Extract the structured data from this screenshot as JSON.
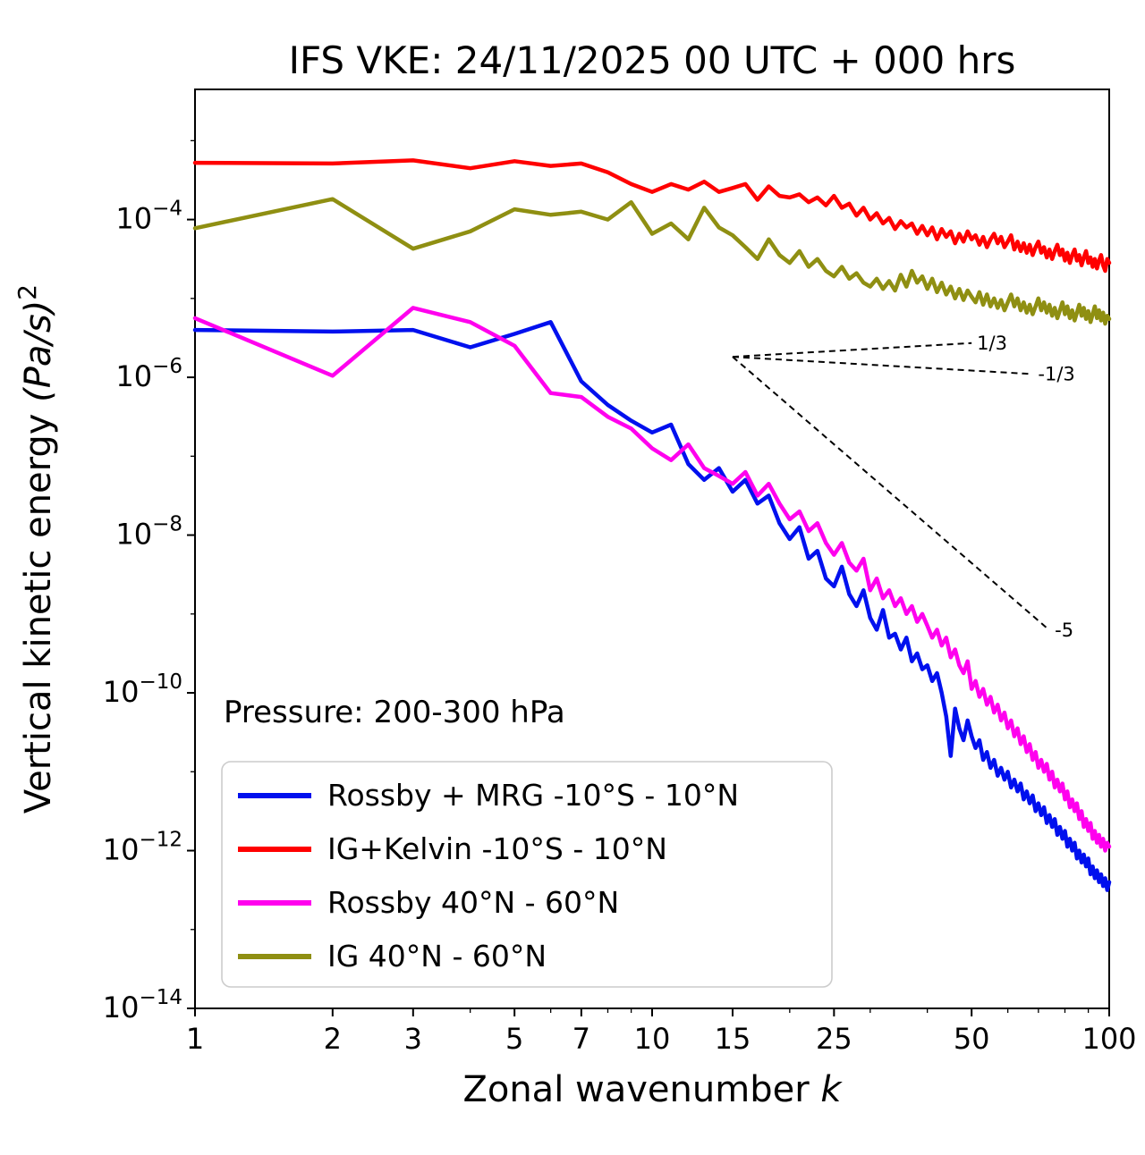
{
  "figure": {
    "title": "IFS VKE: 24/11/2025 00 UTC + 000 hrs",
    "annotation": "Pressure: 200-300 hPa"
  },
  "chart_data": {
    "type": "line",
    "title": "IFS VKE: 24/11/2025 00 UTC + 000 hrs",
    "xlabel": "Zonal wavenumber k",
    "xlabel_plain": "Zonal wavenumber ",
    "xlabel_italic": "k",
    "ylabel": "Vertical kinetic energy (Pa/s)²",
    "ylabel_plain": "Vertical kinetic energy ",
    "ylabel_math": "(Pa/s)",
    "ylabel_sup": "2",
    "xscale": "log",
    "yscale": "log",
    "xlim": [
      1,
      100
    ],
    "ylim_log10": [
      -14,
      -2.35
    ],
    "grid": false,
    "legend_position": "lower left",
    "annotation": "Pressure: 200-300 hPa",
    "x_major_ticks": [
      1,
      2,
      3,
      5,
      7,
      10,
      15,
      25,
      50,
      100
    ],
    "x_minor_ticks": [
      4,
      6,
      8,
      9,
      20,
      30,
      40,
      60,
      70,
      80,
      90
    ],
    "y_major_tick_exponents": [
      -4,
      -6,
      -8,
      -10,
      -12,
      -14
    ],
    "y_minor_tick_exponents": [
      -3,
      -5,
      -7,
      -9,
      -11,
      -13
    ],
    "x": [
      1,
      2,
      3,
      4,
      5,
      6,
      7,
      8,
      9,
      10,
      11,
      12,
      13,
      14,
      15,
      16,
      17,
      18,
      19,
      20,
      21,
      22,
      23,
      24,
      25,
      26,
      27,
      28,
      29,
      30,
      31,
      32,
      33,
      34,
      35,
      36,
      37,
      38,
      39,
      40,
      41,
      42,
      43,
      44,
      45,
      46,
      47,
      48,
      49,
      50,
      51,
      52,
      53,
      54,
      55,
      56,
      57,
      58,
      59,
      60,
      61,
      62,
      63,
      64,
      65,
      66,
      67,
      68,
      69,
      70,
      71,
      72,
      73,
      74,
      75,
      76,
      77,
      78,
      79,
      80,
      81,
      82,
      83,
      84,
      85,
      86,
      87,
      88,
      89,
      90,
      91,
      92,
      93,
      94,
      95,
      96,
      97,
      98,
      99,
      100
    ],
    "y_encoding": "log10 of vertical kinetic energy in (Pa/s)^2",
    "series": [
      {
        "name": "Rossby + MRG -10°S - 10°N",
        "color": "#0010ee",
        "log10_values": [
          -5.4,
          -5.42,
          -5.4,
          -5.62,
          -5.45,
          -5.3,
          -6.05,
          -6.35,
          -6.55,
          -6.7,
          -6.6,
          -7.1,
          -7.3,
          -7.15,
          -7.45,
          -7.3,
          -7.6,
          -7.5,
          -7.85,
          -8.05,
          -7.9,
          -8.3,
          -8.2,
          -8.55,
          -8.65,
          -8.4,
          -8.75,
          -8.9,
          -8.7,
          -9.05,
          -9.2,
          -8.95,
          -9.3,
          -9.25,
          -9.45,
          -9.3,
          -9.6,
          -9.5,
          -9.7,
          -9.65,
          -9.85,
          -9.75,
          -10.0,
          -10.3,
          -10.8,
          -10.2,
          -10.45,
          -10.6,
          -10.35,
          -10.55,
          -10.7,
          -10.6,
          -10.85,
          -10.75,
          -10.95,
          -10.85,
          -11.05,
          -10.95,
          -11.1,
          -11.0,
          -11.2,
          -11.1,
          -11.25,
          -11.15,
          -11.35,
          -11.25,
          -11.4,
          -11.3,
          -11.5,
          -11.4,
          -11.55,
          -11.45,
          -11.65,
          -11.55,
          -11.7,
          -11.6,
          -11.8,
          -11.7,
          -11.85,
          -11.75,
          -11.95,
          -11.85,
          -12.0,
          -11.9,
          -12.1,
          -12.0,
          -12.15,
          -12.05,
          -12.2,
          -12.1,
          -12.3,
          -12.2,
          -12.35,
          -12.25,
          -12.4,
          -12.3,
          -12.45,
          -12.35,
          -12.5,
          -12.4
        ]
      },
      {
        "name": "IG+Kelvin -10°S - 10°N",
        "color": "#ff0000",
        "log10_values": [
          -3.28,
          -3.29,
          -3.25,
          -3.35,
          -3.26,
          -3.32,
          -3.29,
          -3.4,
          -3.55,
          -3.65,
          -3.55,
          -3.62,
          -3.52,
          -3.65,
          -3.6,
          -3.55,
          -3.75,
          -3.58,
          -3.7,
          -3.72,
          -3.68,
          -3.78,
          -3.72,
          -3.82,
          -3.7,
          -3.85,
          -3.8,
          -3.95,
          -3.85,
          -4.0,
          -3.92,
          -4.05,
          -3.98,
          -4.12,
          -4.02,
          -4.1,
          -4.05,
          -4.18,
          -4.08,
          -4.2,
          -4.1,
          -4.25,
          -4.12,
          -4.22,
          -4.15,
          -4.3,
          -4.18,
          -4.28,
          -4.15,
          -4.25,
          -4.2,
          -4.32,
          -4.22,
          -4.35,
          -4.25,
          -4.18,
          -4.3,
          -4.22,
          -4.35,
          -4.28,
          -4.2,
          -4.38,
          -4.28,
          -4.4,
          -4.3,
          -4.42,
          -4.32,
          -4.45,
          -4.35,
          -4.28,
          -4.42,
          -4.35,
          -4.48,
          -4.38,
          -4.5,
          -4.4,
          -4.32,
          -4.45,
          -4.38,
          -4.52,
          -4.42,
          -4.55,
          -4.45,
          -4.38,
          -4.52,
          -4.45,
          -4.58,
          -4.48,
          -4.4,
          -4.55,
          -4.48,
          -4.6,
          -4.5,
          -4.62,
          -4.52,
          -4.45,
          -4.58,
          -4.65,
          -4.5,
          -4.55
        ]
      },
      {
        "name": "Rossby 40°N - 60°N",
        "color": "#ff00ee",
        "log10_values": [
          -5.25,
          -5.98,
          -5.12,
          -5.3,
          -5.6,
          -6.2,
          -6.25,
          -6.5,
          -6.65,
          -6.9,
          -7.05,
          -6.85,
          -7.15,
          -7.25,
          -7.35,
          -7.2,
          -7.5,
          -7.35,
          -7.6,
          -7.8,
          -7.7,
          -7.95,
          -7.85,
          -8.1,
          -8.25,
          -8.1,
          -8.35,
          -8.45,
          -8.3,
          -8.7,
          -8.55,
          -8.8,
          -8.7,
          -8.9,
          -8.8,
          -9.0,
          -8.9,
          -9.1,
          -9.0,
          -9.15,
          -9.3,
          -9.2,
          -9.4,
          -9.3,
          -9.55,
          -9.45,
          -9.65,
          -9.75,
          -9.6,
          -9.95,
          -9.85,
          -10.05,
          -9.95,
          -10.15,
          -10.05,
          -10.25,
          -10.15,
          -10.35,
          -10.25,
          -10.45,
          -10.35,
          -10.55,
          -10.45,
          -10.65,
          -10.55,
          -10.75,
          -10.65,
          -10.85,
          -10.75,
          -10.95,
          -10.85,
          -11.0,
          -10.9,
          -11.1,
          -11.0,
          -11.2,
          -11.1,
          -11.25,
          -11.15,
          -11.35,
          -11.25,
          -11.45,
          -11.35,
          -11.5,
          -11.4,
          -11.6,
          -11.5,
          -11.7,
          -11.6,
          -11.75,
          -11.65,
          -11.85,
          -11.75,
          -11.9,
          -11.8,
          -11.95,
          -11.85,
          -12.0,
          -11.9,
          -11.95
        ]
      },
      {
        "name": "IG 40°N - 60°N",
        "color": "#8f8f12",
        "log10_values": [
          -4.11,
          -3.74,
          -4.37,
          -4.15,
          -3.87,
          -3.94,
          -3.9,
          -4.0,
          -3.78,
          -4.18,
          -4.05,
          -4.25,
          -3.85,
          -4.1,
          -4.2,
          -4.35,
          -4.5,
          -4.25,
          -4.45,
          -4.55,
          -4.4,
          -4.6,
          -4.5,
          -4.65,
          -4.72,
          -4.6,
          -4.75,
          -4.68,
          -4.8,
          -4.85,
          -4.75,
          -4.88,
          -4.78,
          -4.9,
          -4.7,
          -4.85,
          -4.65,
          -4.8,
          -4.72,
          -4.88,
          -4.75,
          -4.92,
          -4.8,
          -4.95,
          -4.85,
          -5.0,
          -4.88,
          -5.02,
          -4.9,
          -4.98,
          -5.05,
          -4.92,
          -5.08,
          -4.95,
          -5.1,
          -5.0,
          -5.12,
          -5.02,
          -5.15,
          -5.05,
          -4.95,
          -5.1,
          -5.0,
          -5.15,
          -5.05,
          -5.18,
          -5.08,
          -5.2,
          -5.1,
          -5.0,
          -5.15,
          -5.05,
          -5.18,
          -5.08,
          -5.22,
          -5.12,
          -5.25,
          -5.15,
          -5.05,
          -5.2,
          -5.1,
          -5.25,
          -5.15,
          -5.28,
          -5.18,
          -5.08,
          -5.22,
          -5.12,
          -5.26,
          -5.16,
          -5.3,
          -5.2,
          -5.1,
          -5.25,
          -5.15,
          -5.28,
          -5.18,
          -5.32,
          -5.22,
          -5.26
        ]
      }
    ],
    "reference_lines": [
      {
        "label": "1/3",
        "slope": 0.3333,
        "k_start": 15,
        "k_end": 50,
        "log10_E_start": -5.74
      },
      {
        "label": "-1/3",
        "slope": -0.3333,
        "k_start": 15,
        "k_end": 68,
        "log10_E_start": -5.74
      },
      {
        "label": "-5",
        "slope": -5,
        "k_start": 15,
        "k_end": 74,
        "log10_E_start": -5.74
      }
    ],
    "legend": [
      {
        "label": "Rossby + MRG -10°S - 10°N",
        "color": "#0010ee"
      },
      {
        "label": "IG+Kelvin -10°S - 10°N",
        "color": "#ff0000"
      },
      {
        "label": "Rossby 40°N - 60°N",
        "color": "#ff00ee"
      },
      {
        "label": "IG 40°N - 60°N",
        "color": "#8f8f12"
      }
    ]
  }
}
